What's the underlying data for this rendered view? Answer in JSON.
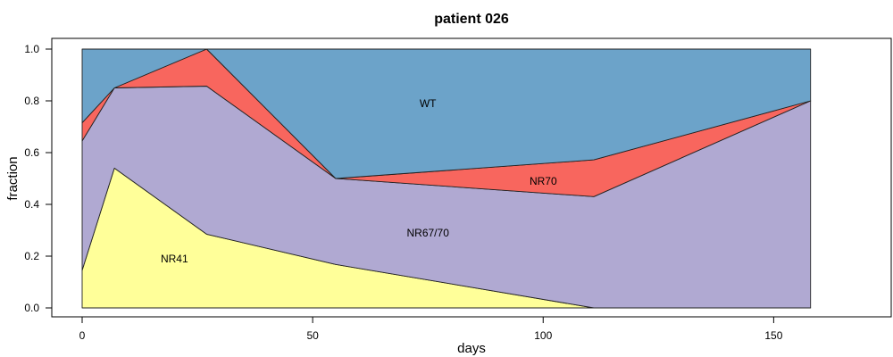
{
  "chart_data": {
    "type": "area",
    "title": "patient 026",
    "xlabel": "days",
    "ylabel": "fraction",
    "xlim": [
      0,
      160
    ],
    "ylim": [
      0,
      1
    ],
    "xticks": [
      0,
      50,
      100,
      150
    ],
    "yticks": [
      0.0,
      0.2,
      0.4,
      0.6,
      0.8,
      1.0
    ],
    "ytick_labels": [
      "0.0",
      "0.2",
      "0.4",
      "0.6",
      "0.8",
      "1.0"
    ],
    "x": [
      0,
      7,
      27,
      55,
      111,
      158
    ],
    "stacked": true,
    "series": [
      {
        "name": "NR41",
        "color": "#FFFF99",
        "values": [
          0.145,
          0.54,
          0.285,
          0.168,
          0.0,
          0.0
        ],
        "label_at": [
          20,
          0.19
        ]
      },
      {
        "name": "NR67/70",
        "color": "#B0A9D2",
        "values": [
          0.5,
          0.31,
          0.572,
          0.332,
          0.43,
          0.8
        ],
        "label_at": [
          75,
          0.29
        ]
      },
      {
        "name": "NR70",
        "color": "#F8665E",
        "values": [
          0.07,
          0.0,
          0.143,
          0.0,
          0.142,
          0.0
        ],
        "label_at": [
          100,
          0.49
        ]
      },
      {
        "name": "WT",
        "color": "#6CA3C9",
        "values": [
          0.285,
          0.15,
          0.0,
          0.5,
          0.428,
          0.2
        ],
        "label_at": [
          75,
          0.79
        ]
      }
    ]
  }
}
